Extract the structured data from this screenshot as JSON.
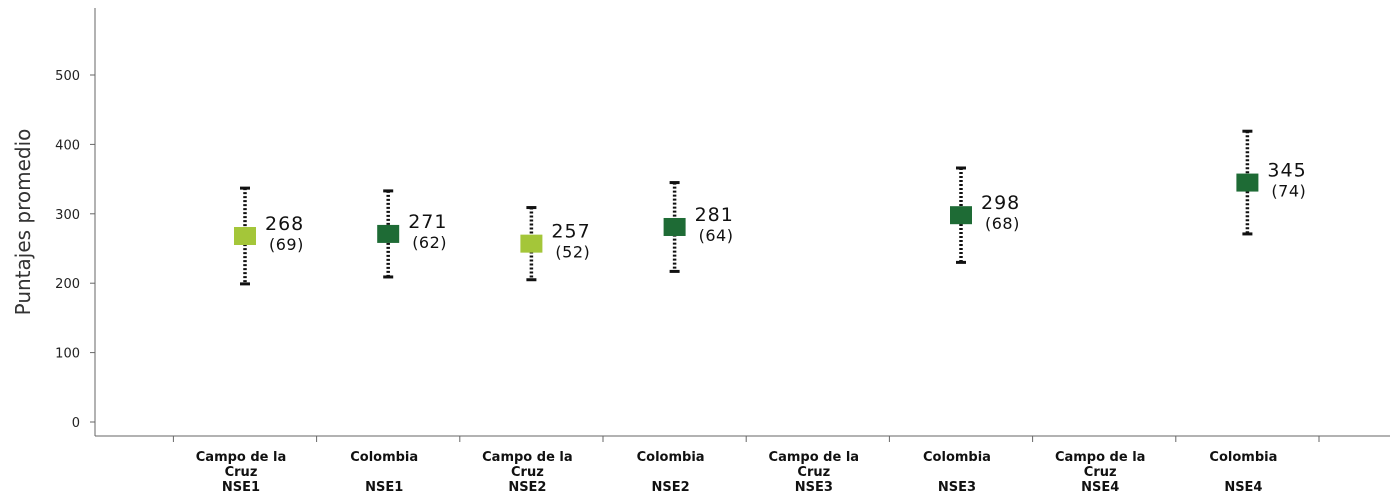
{
  "chart_data": {
    "type": "scatter",
    "title": "",
    "xlabel": "",
    "ylabel": "Puntajes promedio",
    "ylim": [
      0,
      550
    ],
    "yticks": [
      0,
      100,
      200,
      300,
      400,
      500
    ],
    "grid": false,
    "legend": "none",
    "colors": {
      "campo": "#a4c639",
      "colombia": "#1e6b35"
    },
    "categories": [
      {
        "lines": [
          "Campo de la",
          "Cruz",
          "NSE1"
        ],
        "group": "campo"
      },
      {
        "lines": [
          "Colombia",
          "",
          "NSE1"
        ],
        "group": "colombia"
      },
      {
        "lines": [
          "Campo de la",
          "Cruz",
          "NSE2"
        ],
        "group": "campo"
      },
      {
        "lines": [
          "Colombia",
          "",
          "NSE2"
        ],
        "group": "colombia"
      },
      {
        "lines": [
          "Campo de la",
          "Cruz",
          "NSE3"
        ],
        "group": "campo"
      },
      {
        "lines": [
          "Colombia",
          "",
          "NSE3"
        ],
        "group": "colombia"
      },
      {
        "lines": [
          "Campo de la",
          "Cruz",
          "NSE4"
        ],
        "group": "campo"
      },
      {
        "lines": [
          "Colombia",
          "",
          "NSE4"
        ],
        "group": "colombia"
      }
    ],
    "points": [
      {
        "category_index": 0,
        "mean": 268,
        "low": 199,
        "high": 337,
        "mean_label": "268",
        "sd_label": "(69)"
      },
      {
        "category_index": 1,
        "mean": 271,
        "low": 209,
        "high": 333,
        "mean_label": "271",
        "sd_label": "(62)"
      },
      {
        "category_index": 2,
        "mean": 257,
        "low": 205,
        "high": 309,
        "mean_label": "257",
        "sd_label": "(52)"
      },
      {
        "category_index": 3,
        "mean": 281,
        "low": 217,
        "high": 345,
        "mean_label": "281",
        "sd_label": "(64)"
      },
      {
        "category_index": 5,
        "mean": 298,
        "low": 230,
        "high": 366,
        "mean_label": "298",
        "sd_label": "(68)"
      },
      {
        "category_index": 7,
        "mean": 345,
        "low": 271,
        "high": 419,
        "mean_label": "345",
        "sd_label": "(74)"
      }
    ]
  }
}
